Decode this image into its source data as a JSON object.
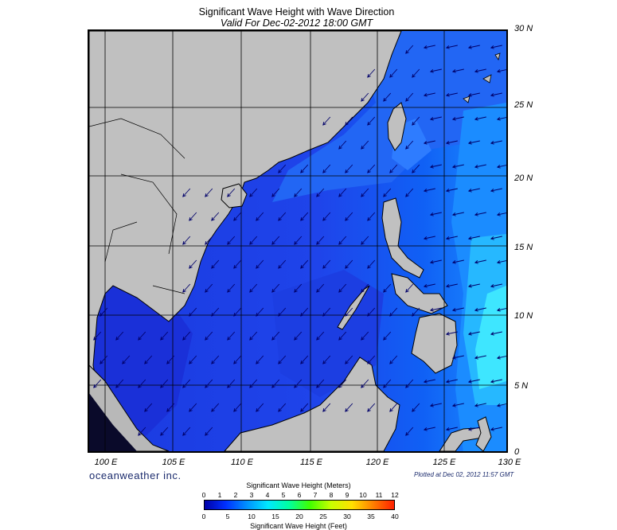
{
  "header": {
    "title": "Significant Wave Height with Wave Direction",
    "subtitle": "Valid For Dec-02-2012 18:00 GMT"
  },
  "map": {
    "lat_range": [
      0,
      30
    ],
    "lon_range": [
      100,
      130
    ],
    "lat_ticks": [
      "0",
      "5 N",
      "10 N",
      "15 N",
      "20 N",
      "25 N",
      "30 N"
    ],
    "lon_ticks": [
      "100 E",
      "105 E",
      "110 E",
      "115 E",
      "120 E",
      "125 E",
      "130 E"
    ],
    "land_color": "#c0c0c0",
    "wave_direction": "toward southwest",
    "labeled_regions": []
  },
  "footer": {
    "brand": "oceanweather inc.",
    "plotted": "Plotted at Dec 02, 2012 11:57 GMT"
  },
  "legend": {
    "title_meters": "Significant Wave Height (Meters)",
    "title_feet": "Significant Wave Height (Feet)",
    "meter_labels": [
      "0",
      "1",
      "2",
      "3",
      "4",
      "5",
      "6",
      "7",
      "8",
      "9",
      "10",
      "11",
      "12"
    ],
    "feet_labels": [
      "0",
      "5",
      "10",
      "15",
      "20",
      "25",
      "30",
      "35",
      "40"
    ],
    "colors": [
      "#0000a8",
      "#0030ff",
      "#0090ff",
      "#00e8ff",
      "#00ffa0",
      "#40ff00",
      "#c8ff00",
      "#ffe000",
      "#ff8000",
      "#ff2000"
    ]
  }
}
